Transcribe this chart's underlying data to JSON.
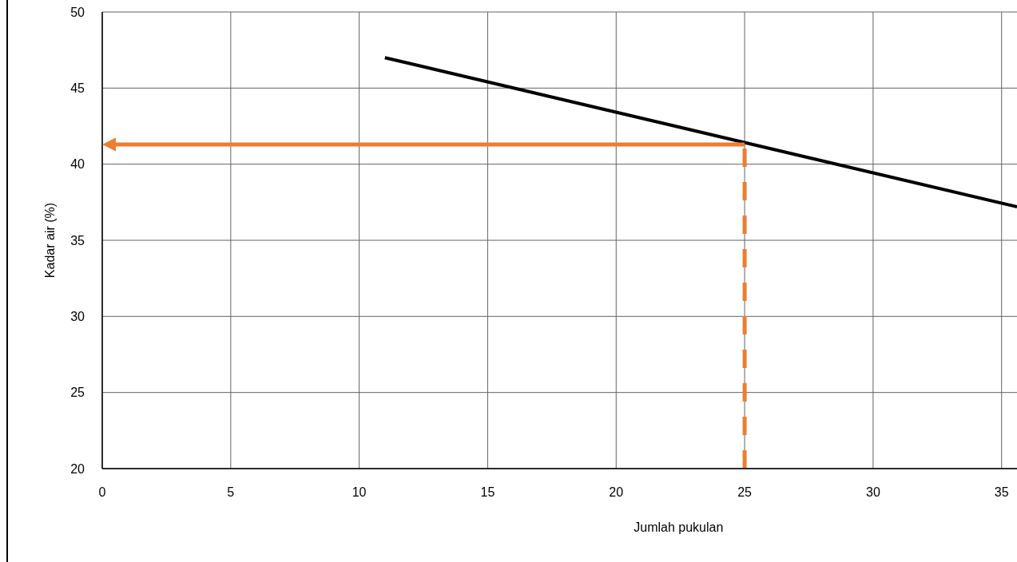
{
  "chart_data": {
    "type": "line",
    "xlabel": "Jumlah pukulan",
    "ylabel": "Kadar air (%)",
    "xlim": [
      0,
      35.6
    ],
    "xticks": [
      0,
      5,
      10,
      15,
      20,
      25,
      30,
      35
    ],
    "ylim": [
      20,
      50
    ],
    "yticks": [
      20,
      25,
      30,
      35,
      40,
      45,
      50
    ],
    "grid": true,
    "marker": "none",
    "series": [
      {
        "color": "#000000",
        "x": [
          11,
          35.6
        ],
        "values": [
          47.0,
          37.2
        ],
        "line_style": "solid"
      },
      {
        "color": "#ed7d31",
        "x": [
          25,
          25
        ],
        "values": [
          20,
          41.3
        ],
        "line_style": "dashed"
      }
    ]
  }
}
